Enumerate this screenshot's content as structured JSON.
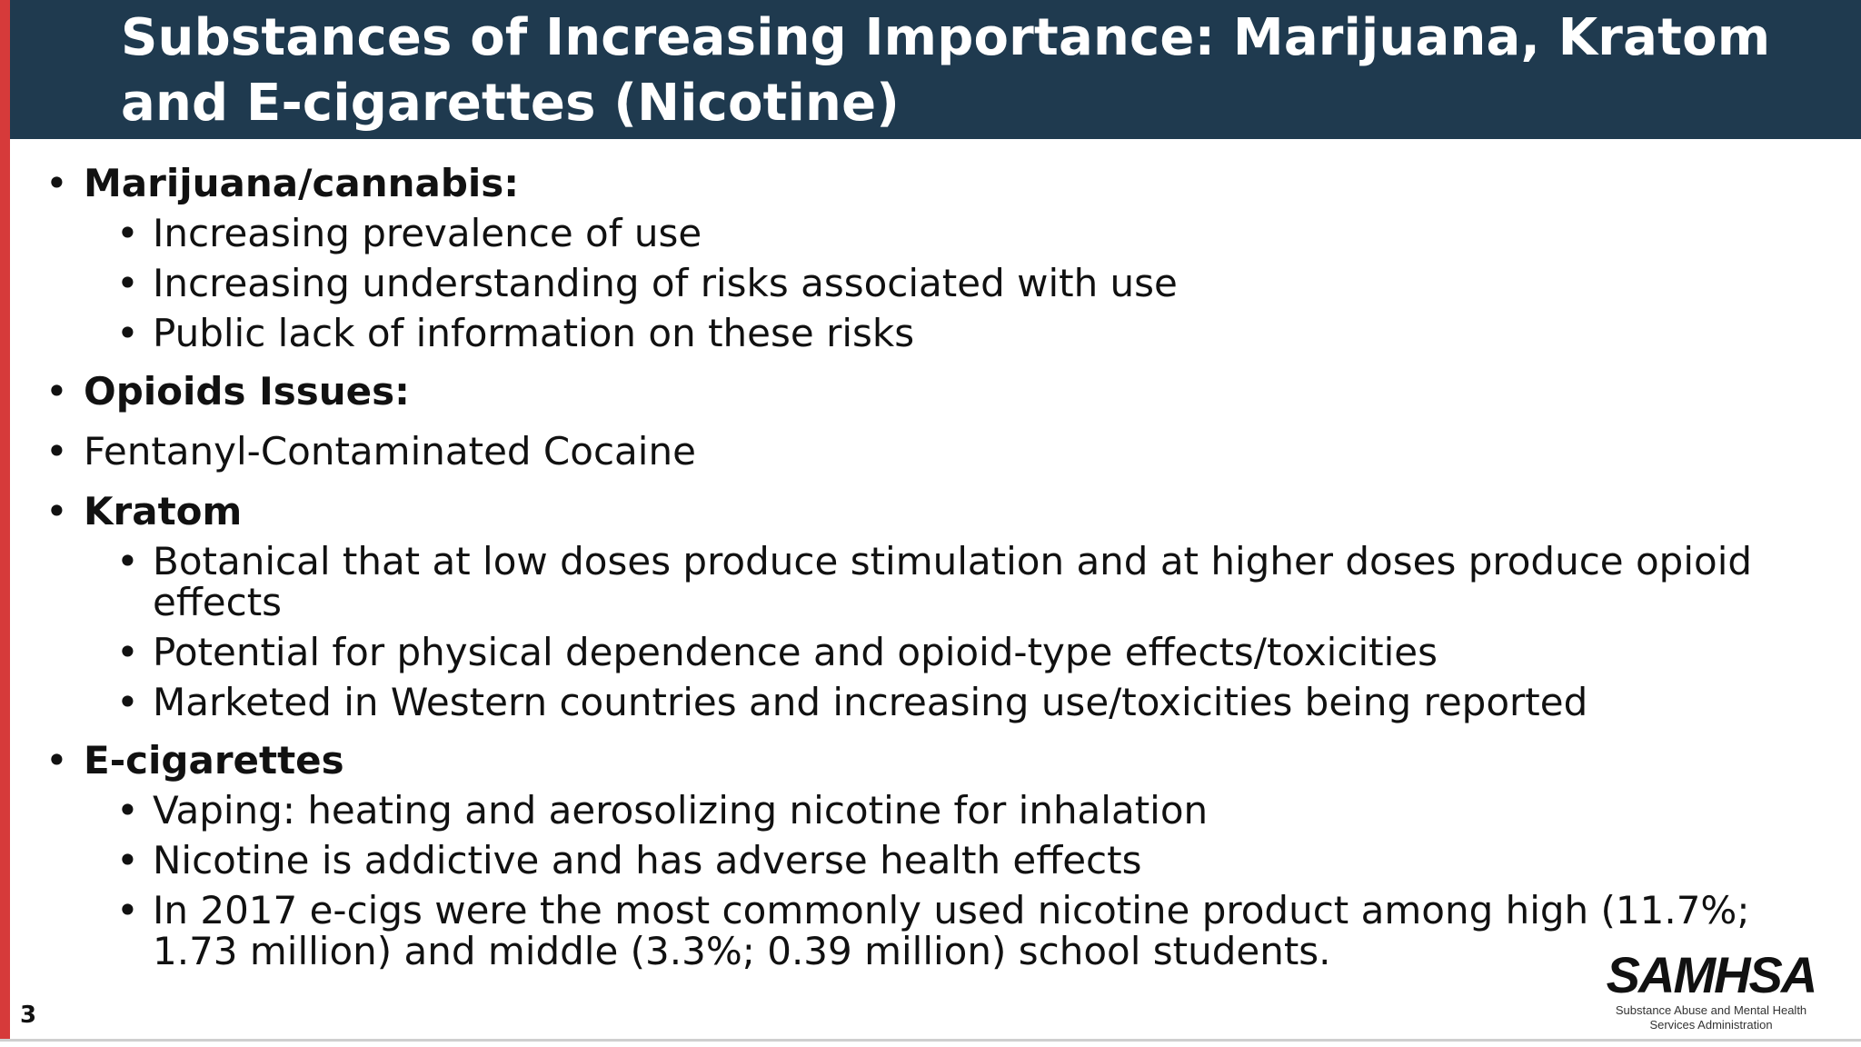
{
  "slide": {
    "title": "Substances of Increasing Importance: Marijuana, Kratom and E-cigarettes (Nicotine)",
    "page_number": "3",
    "bullets": [
      {
        "label": "Marijuana/cannabis:",
        "subitems": [
          "Increasing prevalence of use",
          "Increasing understanding of risks associated with use",
          "Public lack of information on these risks"
        ]
      },
      {
        "label": "Opioids Issues:"
      },
      {
        "label": "Fentanyl-Contaminated Cocaine"
      },
      {
        "label": "Kratom",
        "subitems": [
          "Botanical that at low doses produce stimulation and at higher doses produce opioid effects",
          "Potential for physical dependence and opioid-type effects/toxicities",
          "Marketed in Western countries and increasing use/toxicities being reported"
        ]
      },
      {
        "label": "E-cigarettes",
        "subitems": [
          "Vaping: heating and aerosolizing nicotine for inhalation",
          "Nicotine is addictive and has adverse health effects",
          "In 2017 e-cigs were the most commonly used nicotine product among high (11.7%; 1.73 million) and middle (3.3%; 0.39 million) school students."
        ]
      }
    ],
    "bullet_glyph": "•"
  },
  "logo": {
    "name": "SAMHSA",
    "tagline_line1": "Substance Abuse and Mental Health",
    "tagline_line2": "Services Administration"
  },
  "colors": {
    "header_bg": "#1f3a4f",
    "accent_stripe": "#d63a3a",
    "title_text": "#ffffff",
    "body_text": "#111111"
  }
}
